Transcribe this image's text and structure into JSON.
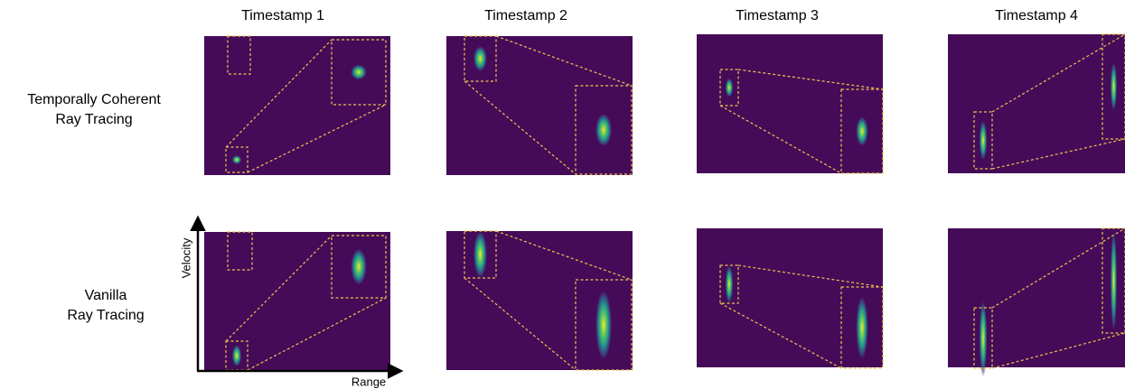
{
  "columns": [
    "Timestamp 1",
    "Timestamp 2",
    "Timestamp 3",
    "Timestamp 4"
  ],
  "rows": [
    [
      "Temporally Coherent",
      "Ray Tracing"
    ],
    [
      "Vanilla",
      "Ray Tracing"
    ]
  ],
  "axes": {
    "y_label": "Velocity",
    "x_label": "Range"
  }
}
